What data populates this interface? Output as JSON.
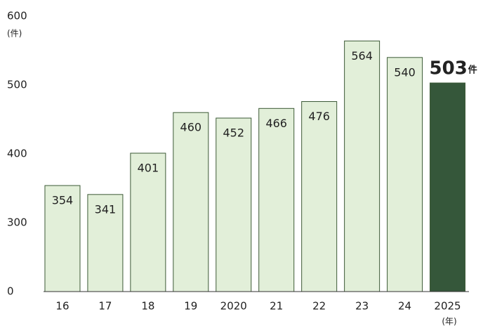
{
  "chart_data": {
    "type": "bar",
    "categories": [
      "16",
      "17",
      "18",
      "19",
      "2020",
      "21",
      "22",
      "23",
      "24",
      "2025"
    ],
    "values": [
      354,
      341,
      401,
      460,
      452,
      466,
      476,
      564,
      540,
      503
    ],
    "color": "#e2efd9",
    "edge_color": "#3c5a36",
    "highlight_index": 9,
    "highlight_color": "#35573a",
    "highlight_unit": "件",
    "ylim": [
      0,
      600
    ],
    "yticks": [
      0,
      300,
      400,
      500,
      600
    ],
    "axis_break": true,
    "y_unit": "(件)",
    "x_unit": "(年)"
  }
}
